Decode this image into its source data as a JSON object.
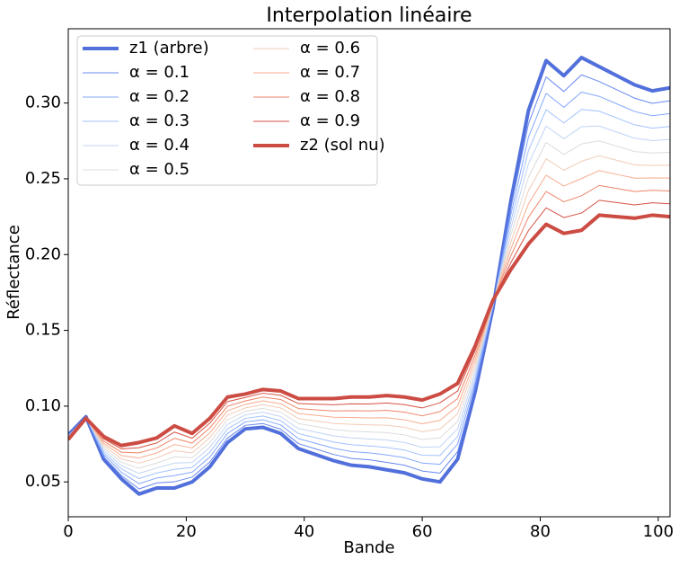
{
  "chart_data": {
    "type": "line",
    "title": "Interpolation linéaire",
    "x_label": "Bande",
    "y_label": "Réflectance",
    "x": [
      0,
      3,
      6,
      9,
      12,
      15,
      18,
      21,
      24,
      27,
      30,
      33,
      36,
      39,
      42,
      45,
      48,
      51,
      54,
      57,
      60,
      63,
      66,
      69,
      72,
      75,
      78,
      81,
      84,
      87,
      90,
      93,
      96,
      99,
      102
    ],
    "xlim": [
      0,
      102
    ],
    "xticks": [
      0,
      20,
      40,
      60,
      80,
      100
    ],
    "ylim": [
      0.027,
      0.349
    ],
    "yticks": [
      0.05,
      {
        "value": 0.1,
        "label": "0.10"
      },
      0.15,
      {
        "value": 0.2,
        "label": "0.20"
      },
      0.25,
      {
        "value": 0.3,
        "label": "0.30"
      }
    ],
    "legend": "upper left",
    "legend_columns": 2,
    "grid": false,
    "series": [
      {
        "name": "z1 (arbre)",
        "color": "#5270db",
        "linewidth": 4,
        "values": [
          0.081,
          0.093,
          0.065,
          0.052,
          0.042,
          0.046,
          0.046,
          0.05,
          0.06,
          0.076,
          0.085,
          0.086,
          0.082,
          0.072,
          0.068,
          0.064,
          0.061,
          0.06,
          0.058,
          0.056,
          0.052,
          0.05,
          0.065,
          0.11,
          0.165,
          0.235,
          0.295,
          0.328,
          0.318,
          0.33,
          0.324,
          0.318,
          0.312,
          0.308,
          0.31
        ]
      },
      {
        "name": "α = 0.1",
        "color": "#6788ee",
        "linewidth": 1,
        "values": [
          0.0807,
          0.0929,
          0.0665,
          0.0542,
          0.0454,
          0.0493,
          0.0501,
          0.0532,
          0.0632,
          0.079,
          0.0873,
          0.0885,
          0.0848,
          0.0753,
          0.0717,
          0.0681,
          0.0655,
          0.0646,
          0.0629,
          0.061,
          0.0572,
          0.0558,
          0.07,
          0.113,
          0.1655,
          0.2305,
          0.2862,
          0.3172,
          0.3076,
          0.3186,
          0.3142,
          0.3087,
          0.3032,
          0.2998,
          0.3015
        ]
      },
      {
        "name": "α = 0.2",
        "color": "#84a7fc",
        "linewidth": 1,
        "values": [
          0.0804,
          0.0928,
          0.068,
          0.0564,
          0.0488,
          0.0526,
          0.0542,
          0.0564,
          0.0664,
          0.082,
          0.0896,
          0.091,
          0.0876,
          0.0786,
          0.0754,
          0.0722,
          0.07,
          0.0692,
          0.0678,
          0.066,
          0.0624,
          0.0616,
          0.075,
          0.116,
          0.166,
          0.226,
          0.2774,
          0.3064,
          0.2972,
          0.3072,
          0.3044,
          0.2994,
          0.2944,
          0.2916,
          0.293
        ]
      },
      {
        "name": "α = 0.3",
        "color": "#a3c2fe",
        "linewidth": 1,
        "values": [
          0.0801,
          0.0927,
          0.0695,
          0.0586,
          0.0522,
          0.0559,
          0.0583,
          0.0596,
          0.0696,
          0.085,
          0.0919,
          0.0935,
          0.0904,
          0.0819,
          0.0791,
          0.0763,
          0.0745,
          0.0738,
          0.0727,
          0.071,
          0.0676,
          0.0674,
          0.08,
          0.119,
          0.1665,
          0.2215,
          0.2686,
          0.2956,
          0.2868,
          0.2958,
          0.2946,
          0.2901,
          0.2856,
          0.2834,
          0.2845
        ]
      },
      {
        "name": "α = 0.4",
        "color": "#c0d4f5",
        "linewidth": 1,
        "values": [
          0.0798,
          0.0926,
          0.071,
          0.0608,
          0.0556,
          0.0592,
          0.0624,
          0.0628,
          0.0728,
          0.088,
          0.0942,
          0.096,
          0.0932,
          0.0852,
          0.0828,
          0.0804,
          0.079,
          0.0784,
          0.0776,
          0.076,
          0.0728,
          0.0732,
          0.085,
          0.122,
          0.167,
          0.217,
          0.2598,
          0.2848,
          0.2764,
          0.2844,
          0.2848,
          0.2808,
          0.2768,
          0.2752,
          0.276
        ]
      },
      {
        "name": "α = 0.5",
        "color": "#dddcdc",
        "linewidth": 1,
        "values": [
          0.0795,
          0.0925,
          0.0725,
          0.063,
          0.059,
          0.0625,
          0.0665,
          0.066,
          0.076,
          0.091,
          0.0965,
          0.0985,
          0.096,
          0.0885,
          0.0865,
          0.0845,
          0.0835,
          0.083,
          0.0825,
          0.081,
          0.078,
          0.079,
          0.09,
          0.125,
          0.1675,
          0.2125,
          0.251,
          0.274,
          0.266,
          0.273,
          0.275,
          0.2715,
          0.268,
          0.267,
          0.2675
        ]
      },
      {
        "name": "α = 0.6",
        "color": "#f2cbb7",
        "linewidth": 1,
        "values": [
          0.0792,
          0.0924,
          0.074,
          0.0652,
          0.0624,
          0.0658,
          0.0706,
          0.0692,
          0.0792,
          0.094,
          0.0988,
          0.101,
          0.0988,
          0.0918,
          0.0902,
          0.0886,
          0.088,
          0.0876,
          0.0874,
          0.086,
          0.0832,
          0.0848,
          0.095,
          0.128,
          0.168,
          0.208,
          0.2422,
          0.2632,
          0.2556,
          0.2616,
          0.2652,
          0.2622,
          0.2592,
          0.2588,
          0.259
        ]
      },
      {
        "name": "α = 0.7",
        "color": "#f7ac8e",
        "linewidth": 1,
        "values": [
          0.0789,
          0.0923,
          0.0755,
          0.0674,
          0.0658,
          0.0691,
          0.0747,
          0.0724,
          0.0824,
          0.097,
          0.1011,
          0.1035,
          0.1016,
          0.0951,
          0.0939,
          0.0927,
          0.0925,
          0.0922,
          0.0923,
          0.091,
          0.0884,
          0.0906,
          0.1,
          0.131,
          0.1685,
          0.2035,
          0.2334,
          0.2524,
          0.2452,
          0.2502,
          0.2554,
          0.2529,
          0.2504,
          0.2506,
          0.2505
        ]
      },
      {
        "name": "α = 0.8",
        "color": "#ee8468",
        "linewidth": 1,
        "values": [
          0.0786,
          0.0922,
          0.077,
          0.0696,
          0.0692,
          0.0724,
          0.0788,
          0.0756,
          0.0856,
          0.1,
          0.1034,
          0.106,
          0.1044,
          0.0984,
          0.0976,
          0.0968,
          0.097,
          0.0968,
          0.0972,
          0.096,
          0.0936,
          0.0964,
          0.105,
          0.134,
          0.169,
          0.199,
          0.2246,
          0.2416,
          0.2348,
          0.2388,
          0.2456,
          0.2436,
          0.2416,
          0.2424,
          0.242
        ]
      },
      {
        "name": "α = 0.9",
        "color": "#d65244",
        "linewidth": 1,
        "values": [
          0.0783,
          0.0921,
          0.0785,
          0.0718,
          0.0726,
          0.0757,
          0.0829,
          0.0788,
          0.0888,
          0.103,
          0.1057,
          0.1085,
          0.1072,
          0.1017,
          0.1013,
          0.1009,
          0.1015,
          0.1014,
          0.1021,
          0.101,
          0.0988,
          0.1022,
          0.11,
          0.137,
          0.1695,
          0.1945,
          0.2158,
          0.2308,
          0.2244,
          0.2274,
          0.2358,
          0.2343,
          0.2328,
          0.2342,
          0.2335
        ]
      },
      {
        "name": "z2 (sol nu)",
        "color": "#cc4c44",
        "linewidth": 4,
        "values": [
          0.078,
          0.092,
          0.08,
          0.074,
          0.076,
          0.079,
          0.087,
          0.082,
          0.092,
          0.106,
          0.108,
          0.111,
          0.11,
          0.105,
          0.105,
          0.105,
          0.106,
          0.106,
          0.107,
          0.106,
          0.104,
          0.108,
          0.115,
          0.14,
          0.17,
          0.19,
          0.207,
          0.22,
          0.214,
          0.216,
          0.226,
          0.225,
          0.224,
          0.226,
          0.225
        ]
      }
    ]
  }
}
